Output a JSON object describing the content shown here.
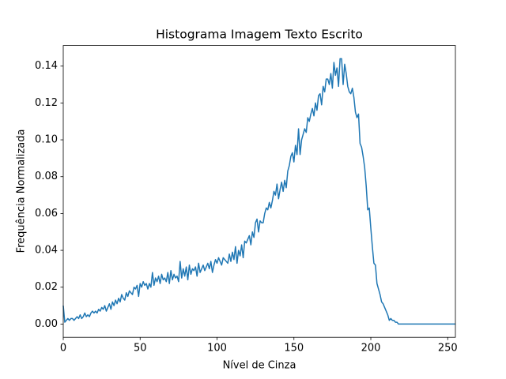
{
  "chart_data": {
    "type": "line",
    "title": "Histograma Imagem Texto Escrito",
    "xlabel": "Nível de Cinza",
    "ylabel": "Frequência Normalizada",
    "x": [
      0,
      1,
      2,
      3,
      4,
      5,
      6,
      7,
      8,
      9,
      10,
      11,
      12,
      13,
      14,
      15,
      16,
      17,
      18,
      19,
      20,
      21,
      22,
      23,
      24,
      25,
      26,
      27,
      28,
      29,
      30,
      31,
      32,
      33,
      34,
      35,
      36,
      37,
      38,
      39,
      40,
      41,
      42,
      43,
      44,
      45,
      46,
      47,
      48,
      49,
      50,
      51,
      52,
      53,
      54,
      55,
      56,
      57,
      58,
      59,
      60,
      61,
      62,
      63,
      64,
      65,
      66,
      67,
      68,
      69,
      70,
      71,
      72,
      73,
      74,
      75,
      76,
      77,
      78,
      79,
      80,
      81,
      82,
      83,
      84,
      85,
      86,
      87,
      88,
      89,
      90,
      91,
      92,
      93,
      94,
      95,
      96,
      97,
      98,
      99,
      100,
      101,
      102,
      103,
      104,
      105,
      106,
      107,
      108,
      109,
      110,
      111,
      112,
      113,
      114,
      115,
      116,
      117,
      118,
      119,
      120,
      121,
      122,
      123,
      124,
      125,
      126,
      127,
      128,
      129,
      130,
      131,
      132,
      133,
      134,
      135,
      136,
      137,
      138,
      139,
      140,
      141,
      142,
      143,
      144,
      145,
      146,
      147,
      148,
      149,
      150,
      151,
      152,
      153,
      154,
      155,
      156,
      157,
      158,
      159,
      160,
      161,
      162,
      163,
      164,
      165,
      166,
      167,
      168,
      169,
      170,
      171,
      172,
      173,
      174,
      175,
      176,
      177,
      178,
      179,
      180,
      181,
      182,
      183,
      184,
      185,
      186,
      187,
      188,
      189,
      190,
      191,
      192,
      193,
      194,
      195,
      196,
      197,
      198,
      199,
      200,
      201,
      202,
      203,
      204,
      205,
      206,
      207,
      208,
      209,
      210,
      211,
      212,
      213,
      214,
      215,
      216,
      217,
      218,
      219,
      220,
      221,
      222,
      223,
      224,
      225,
      226,
      227,
      228,
      229,
      230,
      231,
      232,
      233,
      234,
      235,
      236,
      237,
      238,
      239,
      240,
      241,
      242,
      243,
      244,
      245,
      246,
      247,
      248,
      249,
      250,
      251,
      252,
      253,
      254,
      255
    ],
    "series": [
      {
        "color": "#1f77b4",
        "values": [
          0.01,
          0.001,
          0.002,
          0.003,
          0.002,
          0.003,
          0.003,
          0.002,
          0.003,
          0.004,
          0.003,
          0.005,
          0.003,
          0.004,
          0.006,
          0.004,
          0.005,
          0.004,
          0.006,
          0.007,
          0.006,
          0.007,
          0.006,
          0.008,
          0.007,
          0.009,
          0.008,
          0.01,
          0.007,
          0.009,
          0.011,
          0.008,
          0.012,
          0.01,
          0.013,
          0.011,
          0.014,
          0.012,
          0.016,
          0.014,
          0.013,
          0.017,
          0.015,
          0.018,
          0.017,
          0.016,
          0.02,
          0.019,
          0.021,
          0.015,
          0.022,
          0.02,
          0.023,
          0.021,
          0.022,
          0.019,
          0.022,
          0.02,
          0.028,
          0.021,
          0.025,
          0.023,
          0.026,
          0.022,
          0.027,
          0.024,
          0.025,
          0.023,
          0.028,
          0.022,
          0.029,
          0.024,
          0.027,
          0.025,
          0.026,
          0.023,
          0.034,
          0.025,
          0.03,
          0.026,
          0.031,
          0.024,
          0.032,
          0.027,
          0.03,
          0.029,
          0.031,
          0.026,
          0.033,
          0.028,
          0.03,
          0.032,
          0.029,
          0.031,
          0.033,
          0.03,
          0.034,
          0.028,
          0.032,
          0.035,
          0.033,
          0.036,
          0.034,
          0.032,
          0.036,
          0.035,
          0.034,
          0.033,
          0.038,
          0.034,
          0.039,
          0.035,
          0.042,
          0.033,
          0.04,
          0.037,
          0.043,
          0.036,
          0.045,
          0.044,
          0.046,
          0.048,
          0.043,
          0.05,
          0.047,
          0.055,
          0.057,
          0.05,
          0.056,
          0.055,
          0.055,
          0.06,
          0.063,
          0.062,
          0.066,
          0.063,
          0.067,
          0.072,
          0.07,
          0.076,
          0.068,
          0.073,
          0.077,
          0.072,
          0.078,
          0.074,
          0.083,
          0.086,
          0.091,
          0.093,
          0.088,
          0.097,
          0.092,
          0.106,
          0.092,
          0.1,
          0.103,
          0.106,
          0.104,
          0.112,
          0.11,
          0.114,
          0.117,
          0.113,
          0.12,
          0.116,
          0.124,
          0.125,
          0.119,
          0.129,
          0.126,
          0.133,
          0.133,
          0.13,
          0.136,
          0.128,
          0.142,
          0.135,
          0.139,
          0.129,
          0.144,
          0.144,
          0.13,
          0.141,
          0.136,
          0.129,
          0.126,
          0.125,
          0.128,
          0.123,
          0.115,
          0.112,
          0.114,
          0.098,
          0.096,
          0.091,
          0.085,
          0.075,
          0.062,
          0.063,
          0.052,
          0.042,
          0.033,
          0.032,
          0.022,
          0.019,
          0.016,
          0.012,
          0.011,
          0.009,
          0.007,
          0.005,
          0.002,
          0.003,
          0.002,
          0.002,
          0.001,
          0.001,
          0,
          0,
          0,
          0,
          0,
          0,
          0,
          0,
          0,
          0,
          0,
          0,
          0,
          0,
          0,
          0,
          0,
          0,
          0,
          0,
          0,
          0,
          0,
          0,
          0,
          0,
          0,
          0,
          0,
          0,
          0,
          0,
          0,
          0,
          0,
          0,
          0,
          0
        ]
      }
    ],
    "xlim": [
      0,
      255
    ],
    "ylim": [
      -0.0072,
      0.1512
    ],
    "xticks": [
      0,
      50,
      100,
      150,
      200,
      250
    ],
    "yticks": [
      {
        "value": 0,
        "label": "0.00"
      },
      {
        "value": 0.02,
        "label": "0.02"
      },
      {
        "value": 0.04,
        "label": "0.04"
      },
      {
        "value": 0.06,
        "label": "0.06"
      },
      {
        "value": 0.08,
        "label": "0.08"
      },
      {
        "value": 0.1,
        "label": "0.10"
      },
      {
        "value": 0.12,
        "label": "0.12"
      },
      {
        "value": 0.14,
        "label": "0.14"
      }
    ]
  }
}
